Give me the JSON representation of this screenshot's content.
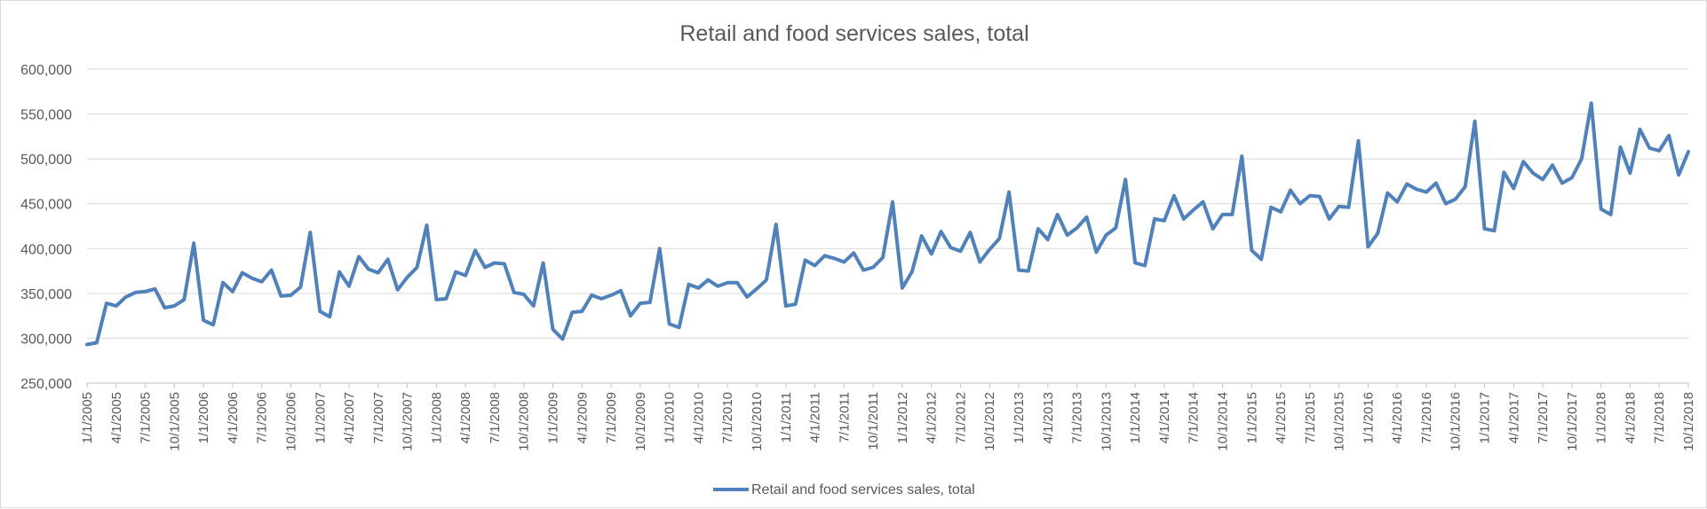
{
  "chart_data": {
    "type": "line",
    "title": "Retail and food services sales, total",
    "xlabel": "",
    "ylabel": "",
    "ylim": [
      250000,
      600000
    ],
    "y_ticks": [
      "250,000",
      "300,000",
      "350,000",
      "400,000",
      "450,000",
      "500,000",
      "550,000",
      "600,000"
    ],
    "y_tick_values": [
      250000,
      300000,
      350000,
      400000,
      450000,
      500000,
      550000,
      600000
    ],
    "x_tick_labels": [
      "1/1/2005",
      "4/1/2005",
      "7/1/2005",
      "10/1/2005",
      "1/1/2006",
      "4/1/2006",
      "7/1/2006",
      "10/1/2006",
      "1/1/2007",
      "4/1/2007",
      "7/1/2007",
      "10/1/2007",
      "1/1/2008",
      "4/1/2008",
      "7/1/2008",
      "10/1/2008",
      "1/1/2009",
      "4/1/2009",
      "7/1/2009",
      "10/1/2009",
      "1/1/2010",
      "4/1/2010",
      "7/1/2010",
      "10/1/2010",
      "1/1/2011",
      "4/1/2011",
      "7/1/2011",
      "10/1/2011",
      "1/1/2012",
      "4/1/2012",
      "7/1/2012",
      "10/1/2012",
      "1/1/2013",
      "4/1/2013",
      "7/1/2013",
      "10/1/2013",
      "1/1/2014",
      "4/1/2014",
      "7/1/2014",
      "10/1/2014",
      "1/1/2015",
      "4/1/2015",
      "7/1/2015",
      "10/1/2015",
      "1/1/2016",
      "4/1/2016",
      "7/1/2016",
      "10/1/2016",
      "1/1/2017",
      "4/1/2017",
      "7/1/2017",
      "10/1/2017",
      "1/1/2018",
      "4/1/2018",
      "7/1/2018",
      "10/1/2018"
    ],
    "grid": true,
    "legend_position": "bottom",
    "series": [
      {
        "name": "Retail and food services sales, total",
        "color": "#4f81bd",
        "start": "1/1/2005",
        "frequency": "monthly",
        "values": [
          293000,
          295000,
          339000,
          336000,
          346000,
          351000,
          352000,
          355000,
          334000,
          336000,
          343000,
          406000,
          320000,
          315000,
          362000,
          352000,
          373000,
          367000,
          363000,
          376000,
          347000,
          348000,
          357000,
          418000,
          330000,
          324000,
          374000,
          358000,
          391000,
          377000,
          373000,
          388000,
          354000,
          368000,
          379000,
          426000,
          343000,
          344000,
          374000,
          370000,
          398000,
          379000,
          384000,
          383000,
          351000,
          349000,
          336000,
          384000,
          310000,
          299000,
          329000,
          330000,
          348000,
          344000,
          348000,
          353000,
          325000,
          339000,
          340000,
          400000,
          316000,
          312000,
          360000,
          356000,
          365000,
          358000,
          362000,
          362000,
          346000,
          355000,
          365000,
          427000,
          336000,
          338000,
          387000,
          381000,
          392000,
          389000,
          385000,
          395000,
          376000,
          379000,
          390000,
          452000,
          356000,
          374000,
          414000,
          394000,
          419000,
          401000,
          397000,
          418000,
          385000,
          399000,
          411000,
          463000,
          376000,
          375000,
          422000,
          410000,
          438000,
          415000,
          423000,
          435000,
          396000,
          415000,
          423000,
          477000,
          384000,
          381000,
          433000,
          431000,
          459000,
          433000,
          443000,
          452000,
          422000,
          438000,
          438000,
          503000,
          398000,
          388000,
          446000,
          441000,
          465000,
          450000,
          459000,
          458000,
          433000,
          447000,
          446000,
          520000,
          402000,
          417000,
          462000,
          452000,
          472000,
          466000,
          463000,
          473000,
          450000,
          455000,
          469000,
          542000,
          422000,
          420000,
          485000,
          467000,
          497000,
          484000,
          477000,
          493000,
          473000,
          479000,
          500000,
          562000,
          444000,
          438000,
          513000,
          484000,
          533000,
          512000,
          509000,
          526000,
          482000,
          508000
        ]
      }
    ]
  }
}
